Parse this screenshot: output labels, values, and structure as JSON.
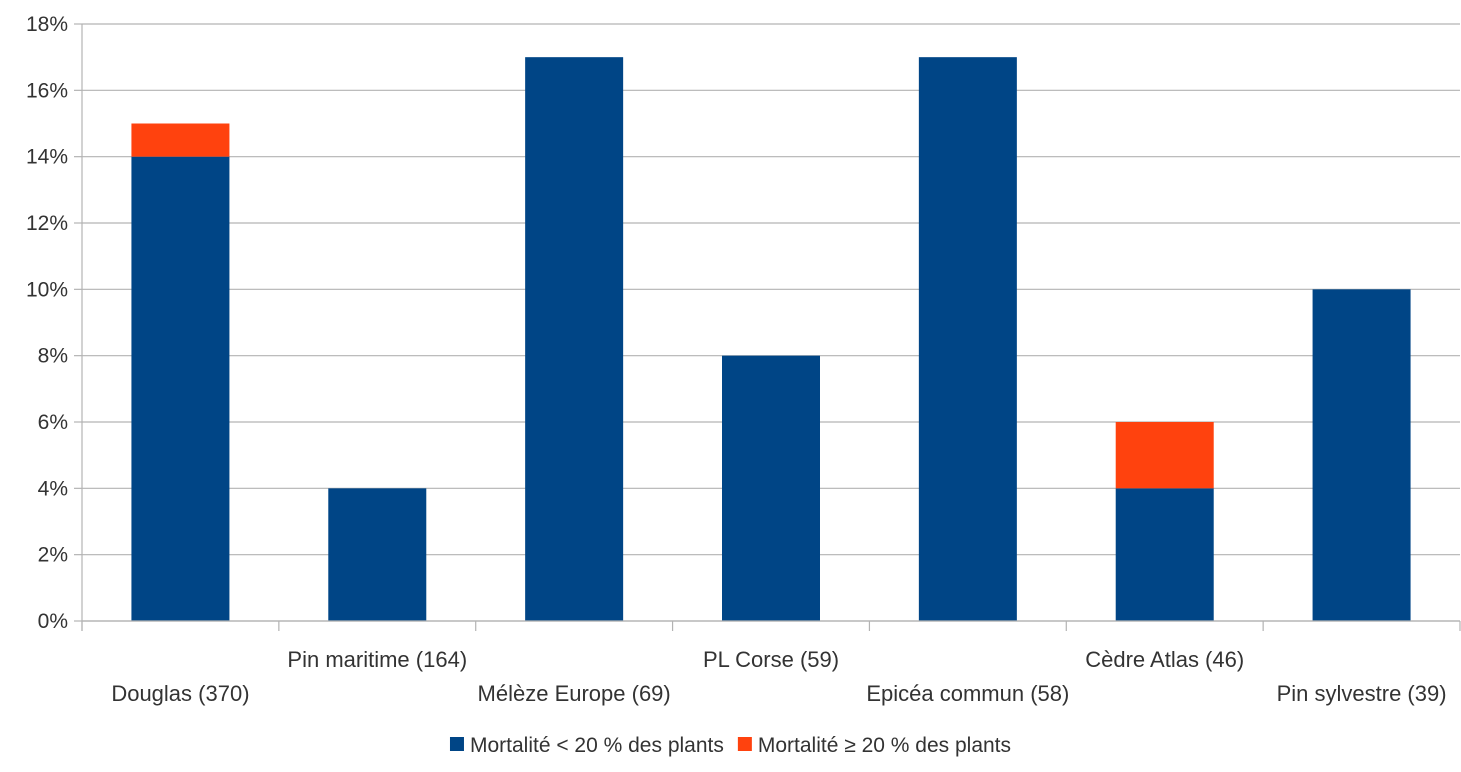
{
  "chart_data": {
    "type": "bar",
    "stacked": true,
    "title": "",
    "xlabel": "",
    "ylabel": "",
    "ylim": [
      0,
      18
    ],
    "y_ticks": [
      0,
      2,
      4,
      6,
      8,
      10,
      12,
      14,
      16,
      18
    ],
    "y_tick_labels": [
      "0%",
      "2%",
      "4%",
      "6%",
      "8%",
      "10%",
      "12%",
      "14%",
      "16%",
      "18%"
    ],
    "grid": true,
    "legend_position": "bottom-center",
    "categories": [
      "Douglas (370)",
      "Pin maritime (164)",
      "Mélèze Europe (69)",
      "PL Corse (59)",
      "Epicéa commun (58)",
      "Cèdre Atlas (46)",
      "Pin sylvestre (39)"
    ],
    "series": [
      {
        "name": "Mortalité < 20 % des plants",
        "color": "#004586",
        "values": [
          14,
          4,
          17,
          8,
          17,
          4,
          10
        ]
      },
      {
        "name": "Mortalité ≥ 20 % des plants",
        "color": "#ff420e",
        "values": [
          1,
          0,
          0,
          0,
          0,
          2,
          0
        ]
      }
    ]
  }
}
